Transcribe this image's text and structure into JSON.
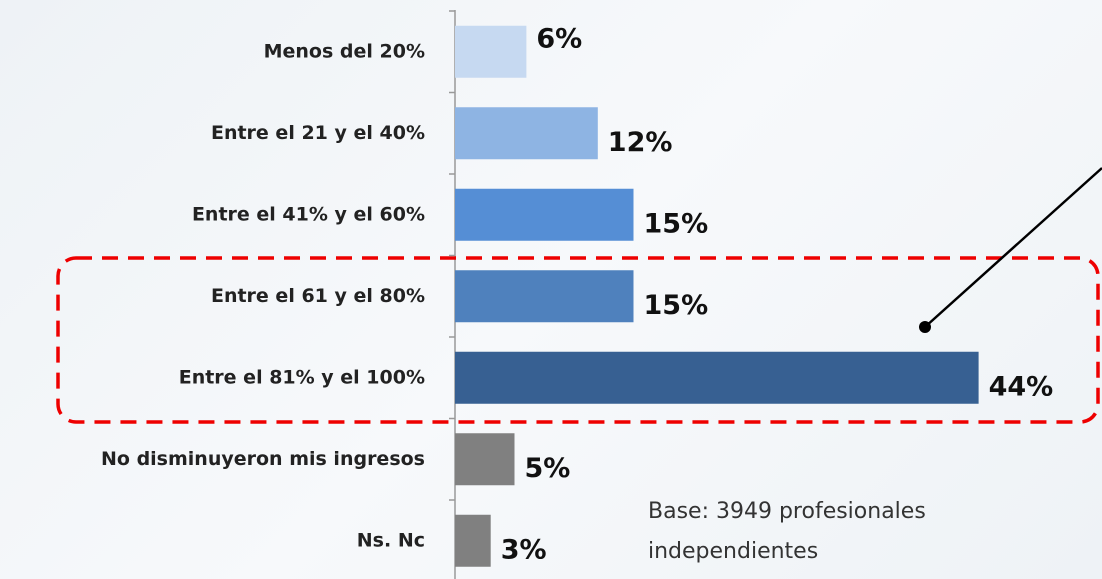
{
  "chart_data": {
    "type": "bar",
    "orientation": "horizontal",
    "categories": [
      "Menos del 20%",
      "Entre el 21 y el 40%",
      "Entre el 41% y el 60%",
      "Entre el 61 y el 80%",
      "Entre el 81% y el 100%",
      "No disminuyeron mis ingresos",
      "Ns. Nc"
    ],
    "values": [
      6,
      12,
      15,
      15,
      44,
      5,
      3
    ],
    "value_labels": [
      "6%",
      "12%",
      "15%",
      "15%",
      "44%",
      "5%",
      "3%"
    ],
    "colors": [
      "#c6d9f1",
      "#8eb4e3",
      "#558ed5",
      "#4f81bd",
      "#376092",
      "#808080",
      "#808080"
    ],
    "annotation": "Base: 3949 profesionales independientes"
  }
}
